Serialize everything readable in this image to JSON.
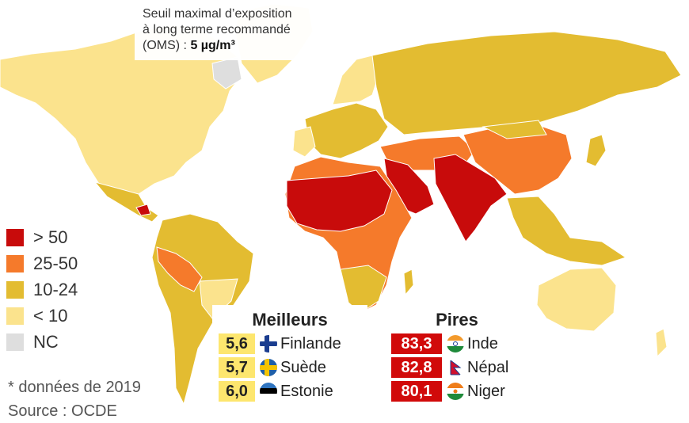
{
  "note": {
    "line1": "Seuil maximal d’exposition",
    "line2": "à long terme recommandé",
    "line3_prefix": "(OMS) : ",
    "line3_value": "5 µg/m³"
  },
  "legend": [
    {
      "label": "> 50",
      "color": "#c80b0b"
    },
    {
      "label": "25-50",
      "color": "#f57a2b"
    },
    {
      "label": "10-24",
      "color": "#e3bc31"
    },
    {
      "label": "< 10",
      "color": "#fbe38d"
    },
    {
      "label": "NC",
      "color": "#dedede"
    }
  ],
  "best": {
    "title": "Meilleurs",
    "rows": [
      {
        "value": "5,6",
        "country": "Finlande",
        "flag": "finland-flag-icon"
      },
      {
        "value": "5,7",
        "country": "Suède",
        "flag": "sweden-flag-icon"
      },
      {
        "value": "6,0",
        "country": "Estonie",
        "flag": "estonia-flag-icon"
      }
    ]
  },
  "worst": {
    "title": "Pires",
    "rows": [
      {
        "value": "83,3",
        "country": "Inde",
        "flag": "india-flag-icon"
      },
      {
        "value": "82,8",
        "country": "Népal",
        "flag": "nepal-flag-icon"
      },
      {
        "value": "80,1",
        "country": "Niger",
        "flag": "niger-flag-icon"
      }
    ]
  },
  "footnote": {
    "line1": "* données de 2019",
    "line2": "Source : OCDE"
  }
}
